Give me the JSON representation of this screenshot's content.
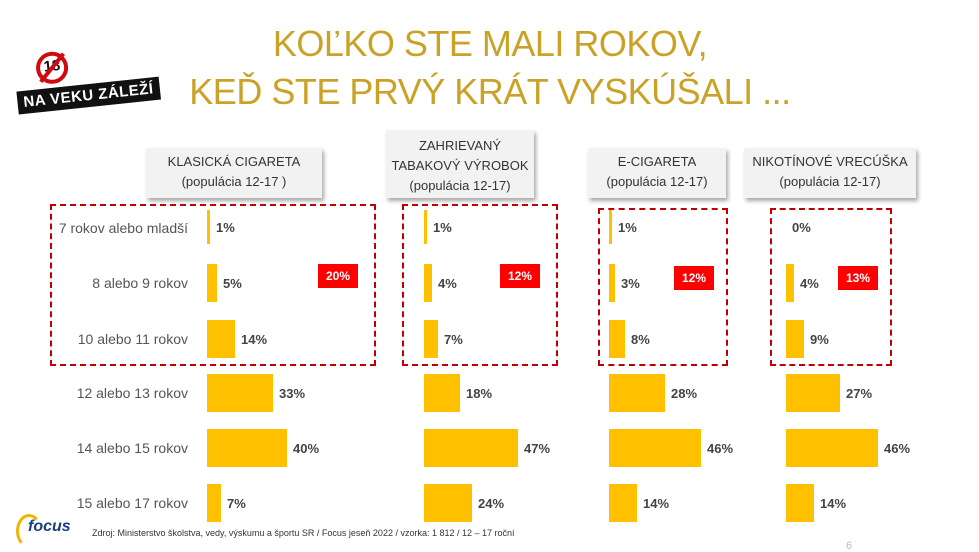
{
  "title": {
    "line1": "KOĽKO STE MALI ROKOV,",
    "line2": "KEĎ STE PRVÝ KRÁT VYSKÚŠALI ..."
  },
  "logo": {
    "number": "18",
    "text": "NA VEKU ZÁLEŽÍ"
  },
  "source": {
    "text": "Zdroj: Ministerstvo školstva, vedy, výskumu a športu SR / Focus jeseň 2022 / vzorka: 1 812 / 12 – 17 roční"
  },
  "footer": {
    "brand": "focus",
    "page_number": "6"
  },
  "colors": {
    "bar": "#ffc000",
    "title": "#c9a227",
    "highlight": "#ff0000",
    "dash": "#c00000"
  },
  "chart_data": {
    "type": "bar",
    "orientation": "horizontal",
    "categories": [
      "7 rokov alebo mladší",
      "8 alebo 9 rokov",
      "10 alebo 11 rokov",
      "12 alebo 13 rokov",
      "14 alebo 15 rokov",
      "15 alebo 17 rokov"
    ],
    "unit": "%",
    "series": [
      {
        "name": "KLASICKÁ CIGARETA",
        "subtitle": "(populácia 12-17 )",
        "values": [
          1,
          5,
          14,
          33,
          40,
          7
        ],
        "labels": [
          "1%",
          "5%",
          "14%",
          "33%",
          "40%",
          "7%"
        ],
        "highlight": "20%"
      },
      {
        "name": "ZAHRIEVANÝ TABAKOVÝ VÝROBOK",
        "name_line1": "ZAHRIEVANÝ",
        "name_line2": "TABAKOVÝ VÝROBOK",
        "subtitle": "(populácia 12-17)",
        "values": [
          1,
          4,
          7,
          18,
          47,
          24
        ],
        "labels": [
          "1%",
          "4%",
          "7%",
          "18%",
          "47%",
          "24%"
        ],
        "highlight": "12%"
      },
      {
        "name": "E-CIGARETA",
        "subtitle": "(populácia 12-17)",
        "values": [
          1,
          3,
          8,
          28,
          46,
          14
        ],
        "labels": [
          "1%",
          "3%",
          "8%",
          "28%",
          "46%",
          "14%"
        ],
        "highlight": "12%"
      },
      {
        "name": "NIKOTÍNOVÉ VRECÚŠKA",
        "subtitle": "(populácia 12-17)",
        "values": [
          0,
          4,
          9,
          27,
          46,
          14
        ],
        "labels": [
          "0%",
          "4%",
          "9%",
          "27%",
          "46%",
          "14%"
        ],
        "highlight": "13%"
      }
    ],
    "highlight_note": "first three age groups summed"
  }
}
